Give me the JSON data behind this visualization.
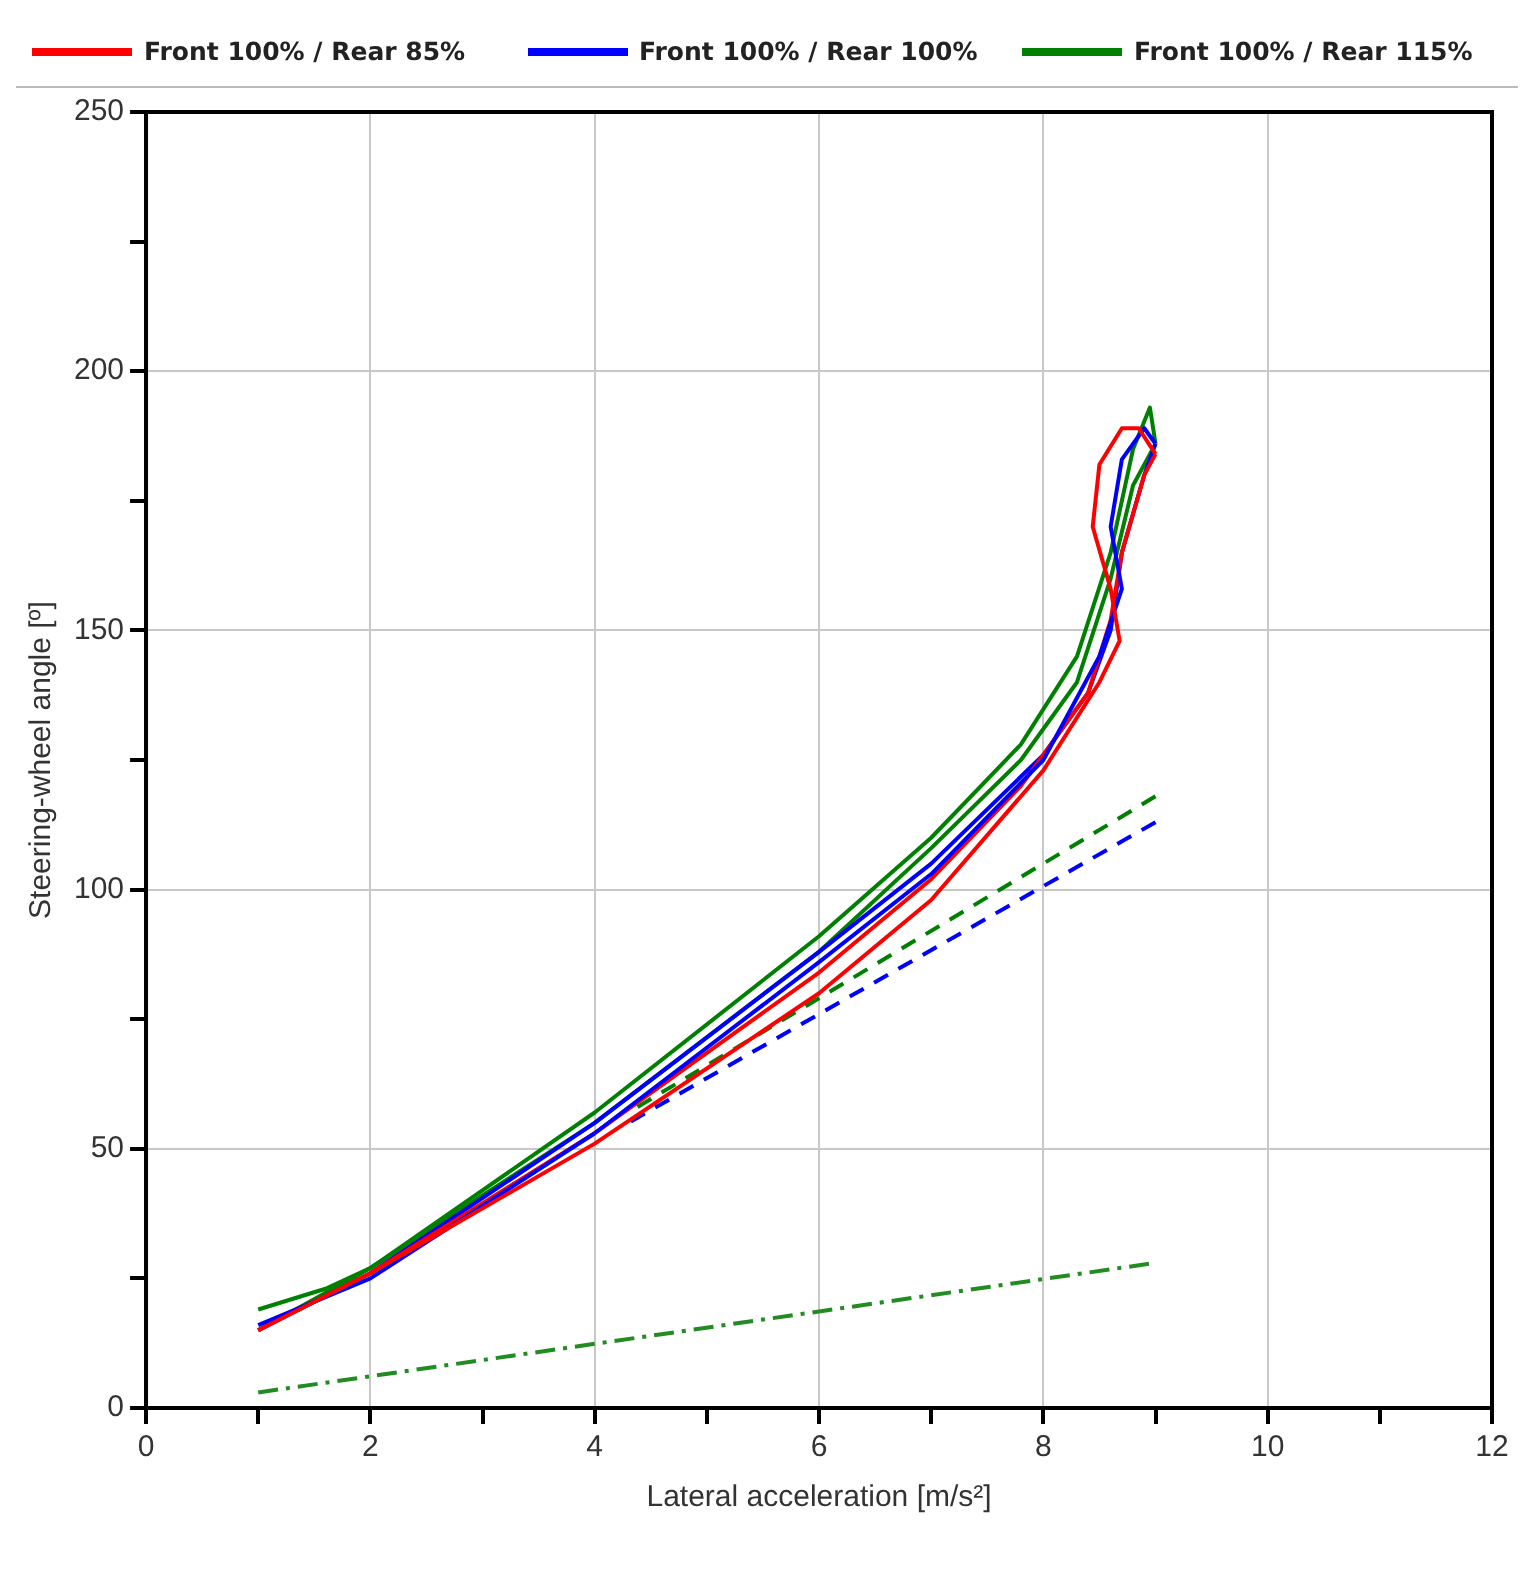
{
  "chart_data": {
    "type": "line",
    "xlabel": "Lateral acceleration [m/s²]",
    "ylabel": "Steering-wheel angle [º]",
    "legend": "top",
    "grid": true,
    "marker": "none",
    "xlim": [
      0,
      12
    ],
    "ylim": [
      0,
      250
    ],
    "xticks": [
      0,
      {
        "value": 1,
        "label": null
      },
      2,
      {
        "value": 3,
        "label": null
      },
      4,
      {
        "value": 5,
        "label": null
      },
      6,
      {
        "value": 7,
        "label": null
      },
      8,
      {
        "value": 9,
        "label": null
      },
      10,
      {
        "value": 11,
        "label": null
      },
      12
    ],
    "yticks": [
      0,
      {
        "value": 25,
        "label": null
      },
      50,
      {
        "value": 75,
        "label": null
      },
      100,
      {
        "value": 125,
        "label": null
      },
      150,
      {
        "value": 175,
        "label": null
      },
      200,
      {
        "value": 225,
        "label": null
      },
      250
    ],
    "series": [
      {
        "name": "Front 100% / Rear 85%",
        "color": "#ff0000",
        "line_style": "solid",
        "x": [
          1,
          2,
          4,
          6,
          7,
          8,
          8.5,
          8.68,
          8.6,
          8.44,
          8.5,
          8.7,
          8.85,
          9
        ],
        "values": [
          15,
          26,
          51,
          80,
          98,
          123,
          140,
          148,
          158,
          170,
          182,
          189,
          189,
          184
        ]
      },
      {
        "name": "Front 100% / Rear 100%",
        "color": "#0000ff",
        "line_style": "solid",
        "x": [
          1,
          2,
          4,
          6,
          7,
          8,
          8.5,
          8.7,
          8.6,
          8.7,
          8.9,
          9
        ],
        "values": [
          16,
          25,
          53,
          86,
          103,
          125,
          145,
          158,
          170,
          183,
          189,
          186
        ]
      },
      {
        "name": "Front 100% / Rear 115%",
        "color": "#008000",
        "line_style": "solid",
        "x": [
          1,
          1.6,
          2,
          4,
          6,
          7,
          7.8,
          8.3,
          8.6,
          8.8,
          8.95,
          9
        ],
        "values": [
          19,
          23,
          27,
          57,
          91,
          110,
          128,
          145,
          165,
          185,
          193,
          186
        ]
      },
      {
        "color": "#ff0000",
        "line_style": "solid",
        "x": [
          9,
          8.9,
          8.7,
          8.6,
          8.4,
          7.8,
          7,
          6,
          4,
          2,
          1
        ],
        "values": [
          184,
          180,
          165,
          152,
          138,
          120,
          102,
          84,
          53,
          26,
          15
        ]
      },
      {
        "color": "#0000ff",
        "line_style": "solid",
        "x": [
          9,
          8.9,
          8.7,
          8.6,
          8.4,
          8,
          7,
          6,
          4,
          2,
          1
        ],
        "values": [
          186,
          180,
          165,
          150,
          138,
          126,
          105,
          88,
          55,
          26,
          15
        ]
      },
      {
        "color": "#008000",
        "line_style": "solid",
        "x": [
          9,
          8.95,
          8.8,
          8.6,
          8.3,
          7.8,
          7,
          6,
          4,
          2,
          1
        ],
        "values": [
          186,
          184,
          178,
          160,
          140,
          125,
          108,
          88,
          55,
          27,
          15
        ]
      },
      {
        "color": "#0000ff",
        "line_style": "dashed",
        "x": [
          9,
          4.3
        ],
        "values": [
          113,
          55
        ]
      },
      {
        "color": "#008000",
        "line_style": "dashed",
        "x": [
          9,
          4.3
        ],
        "values": [
          118,
          57
        ]
      },
      {
        "color": "#228b22",
        "line_style": "dashdot",
        "x": [
          1,
          9
        ],
        "values": [
          3,
          28
        ]
      }
    ]
  }
}
